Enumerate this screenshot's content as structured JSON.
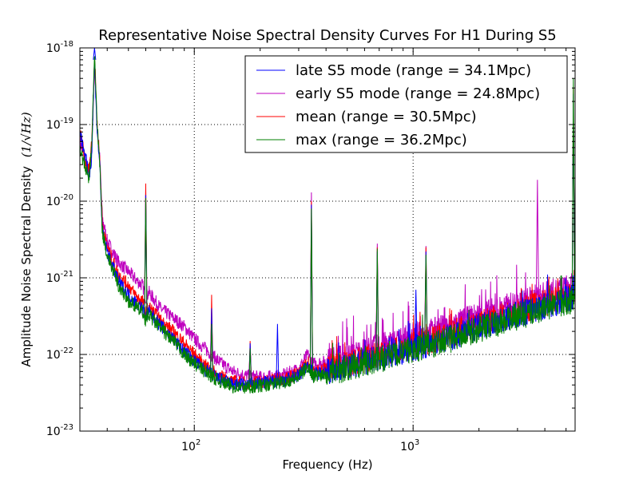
{
  "chart_data": {
    "type": "line",
    "title": "Representative Noise Spectral Density Curves For H1 During S5",
    "xlabel": "Frequency (Hz)",
    "ylabel": "Amplitude Noise Spectral Density",
    "ylabel_unit": "(1/√Hz)",
    "x_scale": "log",
    "y_scale": "log",
    "xlim": [
      30,
      5500
    ],
    "ylim": [
      1e-23,
      1e-18
    ],
    "x_ticks": [
      {
        "value": 100,
        "base": "10",
        "exp": "2"
      },
      {
        "value": 1000,
        "base": "10",
        "exp": "3"
      }
    ],
    "y_ticks": [
      {
        "value": 1e-23,
        "base": "10",
        "exp": "-23"
      },
      {
        "value": 1e-22,
        "base": "10",
        "exp": "-22"
      },
      {
        "value": 1e-21,
        "base": "10",
        "exp": "-21"
      },
      {
        "value": 1e-20,
        "base": "10",
        "exp": "-20"
      },
      {
        "value": 1e-19,
        "base": "10",
        "exp": "-19"
      },
      {
        "value": 1e-18,
        "base": "10",
        "exp": "-18"
      }
    ],
    "grid": true,
    "legend_position": "top-right",
    "series": [
      {
        "name": "late S5 mode (range = 34.1Mpc)",
        "color": "#0000ff",
        "points": [
          [
            30,
            8e-20
          ],
          [
            32,
            3.5e-20
          ],
          [
            33,
            2e-20
          ],
          [
            34,
            4e-20
          ],
          [
            35,
            7e-19
          ],
          [
            36,
            8e-20
          ],
          [
            37,
            3e-20
          ],
          [
            38,
            4e-21
          ],
          [
            40,
            2.2e-21
          ],
          [
            45,
            9e-22
          ],
          [
            50,
            6e-22
          ],
          [
            55,
            4.5e-22
          ],
          [
            58,
            4e-22
          ],
          [
            60,
            3e-22
          ],
          [
            62,
            3.6e-22
          ],
          [
            70,
            2.4e-22
          ],
          [
            80,
            1.6e-22
          ],
          [
            90,
            1.1e-22
          ],
          [
            100,
            8.2e-23
          ],
          [
            110,
            6.5e-23
          ],
          [
            120,
            5.5e-23
          ],
          [
            130,
            4.8e-23
          ],
          [
            150,
            4.1e-23
          ],
          [
            170,
            4e-23
          ],
          [
            200,
            4.2e-23
          ],
          [
            250,
            4.5e-23
          ],
          [
            300,
            5.3e-23
          ],
          [
            330,
            7.5e-23
          ],
          [
            350,
            5.5e-23
          ],
          [
            400,
            6e-23
          ],
          [
            500,
            7e-23
          ],
          [
            700,
            9e-23
          ],
          [
            1000,
            1.2e-22
          ],
          [
            1500,
            1.7e-22
          ],
          [
            2000,
            2.3e-22
          ],
          [
            3000,
            3.3e-22
          ],
          [
            4000,
            4.3e-22
          ],
          [
            5000,
            5.2e-22
          ],
          [
            5500,
            5.6e-22
          ]
        ],
        "peaks": [
          [
            35,
            1e-18
          ],
          [
            60,
            1.2e-20
          ],
          [
            120,
            4e-22
          ],
          [
            180,
            1.4e-22
          ],
          [
            240,
            2.5e-22
          ],
          [
            343,
            9e-21
          ],
          [
            686,
            2.2e-21
          ],
          [
            1030,
            7e-22
          ],
          [
            1145,
            2.2e-21
          ],
          [
            5400,
            2.5e-19
          ]
        ]
      },
      {
        "name": "early S5 mode (range = 24.8Mpc)",
        "color": "#bf00bf",
        "points": [
          [
            30,
            6e-20
          ],
          [
            32,
            3e-20
          ],
          [
            33,
            2.5e-20
          ],
          [
            34,
            5e-20
          ],
          [
            35,
            6e-19
          ],
          [
            36,
            9e-20
          ],
          [
            37,
            3.5e-20
          ],
          [
            38,
            6e-21
          ],
          [
            40,
            3e-21
          ],
          [
            45,
            1.6e-21
          ],
          [
            50,
            1.2e-21
          ],
          [
            55,
            9e-22
          ],
          [
            58,
            8e-22
          ],
          [
            60,
            5.5e-22
          ],
          [
            62,
            6.5e-22
          ],
          [
            70,
            4e-22
          ],
          [
            80,
            3e-22
          ],
          [
            90,
            2.3e-22
          ],
          [
            100,
            1.6e-22
          ],
          [
            110,
            1.25e-22
          ],
          [
            120,
            1e-22
          ],
          [
            130,
            8e-23
          ],
          [
            150,
            6e-23
          ],
          [
            170,
            5.3e-23
          ],
          [
            200,
            5e-23
          ],
          [
            250,
            5.2e-23
          ],
          [
            300,
            6.5e-23
          ],
          [
            330,
            1e-22
          ],
          [
            350,
            7.5e-23
          ],
          [
            400,
            8e-23
          ],
          [
            500,
            9.5e-23
          ],
          [
            700,
            1.25e-22
          ],
          [
            1000,
            1.7e-22
          ],
          [
            1500,
            2.4e-22
          ],
          [
            2000,
            3.2e-22
          ],
          [
            3000,
            4.6e-22
          ],
          [
            4000,
            6e-22
          ],
          [
            5000,
            7.3e-22
          ],
          [
            5500,
            7.8e-22
          ]
        ],
        "peaks": [
          [
            60,
            1.4e-20
          ],
          [
            120,
            3e-22
          ],
          [
            180,
            1.3e-22
          ],
          [
            343,
            1.3e-20
          ],
          [
            686,
            2.8e-21
          ],
          [
            1145,
            2.6e-21
          ],
          [
            3700,
            1.9e-20
          ],
          [
            5400,
            2e-19
          ]
        ]
      },
      {
        "name": "mean (range = 30.5Mpc)",
        "color": "#ff0000",
        "points": [
          [
            30,
            8e-20
          ],
          [
            32,
            3e-20
          ],
          [
            33,
            2.5e-20
          ],
          [
            34,
            6e-20
          ],
          [
            35,
            8e-19
          ],
          [
            36,
            1e-19
          ],
          [
            37,
            3.5e-20
          ],
          [
            38,
            5e-21
          ],
          [
            40,
            2.5e-21
          ],
          [
            45,
            1.1e-21
          ],
          [
            50,
            8e-22
          ],
          [
            55,
            5.5e-22
          ],
          [
            58,
            5e-22
          ],
          [
            60,
            3.5e-22
          ],
          [
            62,
            4.2e-22
          ],
          [
            70,
            2.8e-22
          ],
          [
            80,
            2e-22
          ],
          [
            90,
            1.4e-22
          ],
          [
            100,
            1e-22
          ],
          [
            110,
            7.5e-23
          ],
          [
            120,
            6.2e-23
          ],
          [
            130,
            5.2e-23
          ],
          [
            150,
            4.4e-23
          ],
          [
            170,
            4.2e-23
          ],
          [
            200,
            4.4e-23
          ],
          [
            250,
            4.8e-23
          ],
          [
            300,
            5.6e-23
          ],
          [
            330,
            8e-23
          ],
          [
            350,
            6e-23
          ],
          [
            400,
            6.5e-23
          ],
          [
            500,
            7.5e-23
          ],
          [
            700,
            9.8e-23
          ],
          [
            1000,
            1.3e-22
          ],
          [
            1500,
            1.9e-22
          ],
          [
            2000,
            2.5e-22
          ],
          [
            3000,
            3.6e-22
          ],
          [
            4000,
            4.7e-22
          ],
          [
            5000,
            5.7e-22
          ],
          [
            5500,
            6.1e-22
          ]
        ],
        "peaks": [
          [
            60,
            1.7e-20
          ],
          [
            120,
            6e-22
          ],
          [
            180,
            1.5e-22
          ],
          [
            343,
            1e-20
          ],
          [
            686,
            2.5e-21
          ],
          [
            1145,
            2.5e-21
          ],
          [
            5400,
            3e-19
          ]
        ]
      },
      {
        "name": "max (range = 36.2Mpc)",
        "color": "#007f00",
        "points": [
          [
            30,
            5e-20
          ],
          [
            32,
            2.5e-20
          ],
          [
            33,
            2e-20
          ],
          [
            34,
            5e-20
          ],
          [
            35,
            9e-19
          ],
          [
            36,
            9e-20
          ],
          [
            37,
            3e-20
          ],
          [
            38,
            4e-21
          ],
          [
            40,
            2e-21
          ],
          [
            45,
            8e-22
          ],
          [
            50,
            5e-22
          ],
          [
            55,
            4e-22
          ],
          [
            58,
            3.6e-22
          ],
          [
            60,
            2.8e-22
          ],
          [
            62,
            3.3e-22
          ],
          [
            70,
            2.2e-22
          ],
          [
            80,
            1.5e-22
          ],
          [
            90,
            1e-22
          ],
          [
            100,
            7.6e-23
          ],
          [
            110,
            6.2e-23
          ],
          [
            120,
            5.2e-23
          ],
          [
            130,
            4.5e-23
          ],
          [
            150,
            3.8e-23
          ],
          [
            170,
            3.7e-23
          ],
          [
            200,
            3.9e-23
          ],
          [
            250,
            4.3e-23
          ],
          [
            300,
            5e-23
          ],
          [
            330,
            7e-23
          ],
          [
            350,
            5.2e-23
          ],
          [
            400,
            5.7e-23
          ],
          [
            500,
            6.6e-23
          ],
          [
            700,
            8.5e-23
          ],
          [
            1000,
            1.15e-22
          ],
          [
            1500,
            1.6e-22
          ],
          [
            2000,
            2.15e-22
          ],
          [
            3000,
            3.1e-22
          ],
          [
            4000,
            4e-22
          ],
          [
            5000,
            4.9e-22
          ],
          [
            5500,
            5.3e-22
          ]
        ],
        "peaks": [
          [
            60,
            1.1e-20
          ],
          [
            120,
            2.5e-22
          ],
          [
            180,
            1.2e-22
          ],
          [
            343,
            8e-21
          ],
          [
            686,
            2.4e-21
          ],
          [
            1145,
            2e-21
          ],
          [
            5400,
            4e-19
          ]
        ]
      }
    ]
  }
}
